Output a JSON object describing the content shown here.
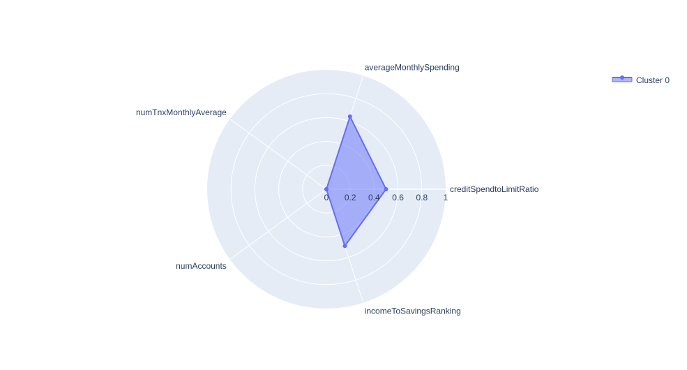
{
  "chart_data": {
    "type": "radar",
    "radial_range": [
      0,
      1
    ],
    "radial_ticks": [
      "0",
      "0.2",
      "0.4",
      "0.6",
      "0.8",
      "1"
    ],
    "radial_tick_values": [
      0,
      0.2,
      0.4,
      0.6,
      0.8,
      1
    ],
    "categories": [
      "creditSpendtoLimitRatio",
      "averageMonthlySpending",
      "numTnxMonthlyAverage",
      "numAccounts",
      "incomeToSavingsRanking"
    ],
    "series": [
      {
        "name": "Cluster 0",
        "values": [
          0.5,
          0.64,
          0.0,
          0.0,
          0.5
        ]
      }
    ],
    "colors": {
      "series_line": "#636efa",
      "series_fill": "rgba(99,110,250,0.5)",
      "polar_bg": "#e5ecf6",
      "grid": "#ffffff",
      "text": "#2a3f5f"
    },
    "legend_position": "top-right"
  }
}
